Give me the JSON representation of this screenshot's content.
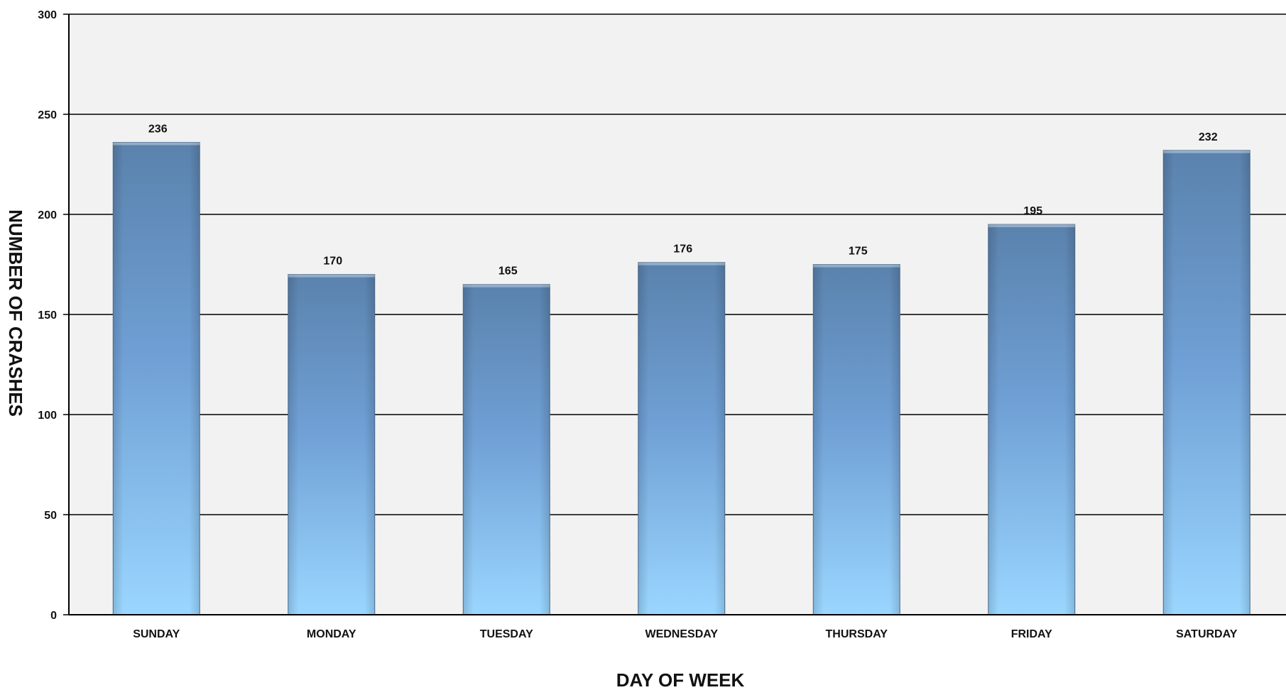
{
  "chart_data": {
    "type": "bar",
    "title": "",
    "xlabel": "DAY OF WEEK",
    "ylabel": "NUMBER OF CRASHES",
    "categories": [
      "SUNDAY",
      "MONDAY",
      "TUESDAY",
      "WEDNESDAY",
      "THURSDAY",
      "FRIDAY",
      "SATURDAY"
    ],
    "values": [
      236,
      170,
      165,
      176,
      175,
      195,
      232
    ],
    "ylim": [
      0,
      300
    ],
    "yticks": [
      0,
      50,
      100,
      150,
      200,
      250,
      300
    ],
    "grid": true,
    "legend": "none",
    "data_labels": true,
    "colors": {
      "plot_background": "#f2f2f2",
      "gridline": "#000000",
      "bar_top": "#5a82ad",
      "bar_bottom": "#9ad6ff",
      "bar_edge": "#4f6f93"
    }
  }
}
